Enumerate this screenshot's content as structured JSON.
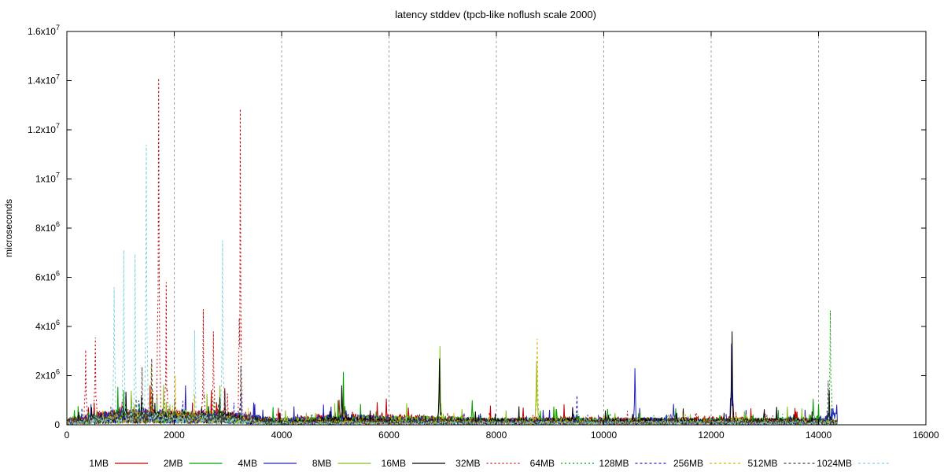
{
  "chart_data": {
    "type": "line",
    "title": "latency stddev (tpcb-like noflush scale 2000)",
    "xlabel": "",
    "ylabel": "microseconds",
    "xlim": [
      0,
      16000
    ],
    "ylim": [
      0,
      16000000
    ],
    "x_ticks": [
      0,
      2000,
      4000,
      6000,
      8000,
      10000,
      12000,
      14000,
      16000
    ],
    "y_ticks": [
      {
        "value": 0,
        "label": "0",
        "mant": "",
        "exp": ""
      },
      {
        "value": 2000000,
        "label": "",
        "mant": "2x10",
        "exp": "6"
      },
      {
        "value": 4000000,
        "label": "",
        "mant": "4x10",
        "exp": "6"
      },
      {
        "value": 6000000,
        "label": "",
        "mant": "6x10",
        "exp": "6"
      },
      {
        "value": 8000000,
        "label": "",
        "mant": "8x10",
        "exp": "6"
      },
      {
        "value": 10000000,
        "label": "",
        "mant": "1x10",
        "exp": "7"
      },
      {
        "value": 12000000,
        "label": "",
        "mant": "1.2x10",
        "exp": "7"
      },
      {
        "value": 14000000,
        "label": "",
        "mant": "1.4x10",
        "exp": "7"
      },
      {
        "value": 16000000,
        "label": "",
        "mant": "1.6x10",
        "exp": "7"
      }
    ],
    "grid": "vertical-dashed",
    "legend_position": "bottom",
    "series": [
      {
        "name": "1MB",
        "color": "#c00000",
        "dash": "",
        "points": [
          [
            0,
            150000
          ],
          [
            1000,
            400000
          ],
          [
            2000,
            300000
          ],
          [
            3000,
            350000
          ],
          [
            3300,
            250000
          ],
          [
            4000,
            150000
          ],
          [
            5100,
            300000
          ],
          [
            6000,
            250000
          ],
          [
            7000,
            200000
          ],
          [
            8000,
            150000
          ],
          [
            9000,
            200000
          ],
          [
            10000,
            180000
          ],
          [
            11000,
            150000
          ],
          [
            12000,
            200000
          ],
          [
            13000,
            150000
          ],
          [
            14000,
            180000
          ],
          [
            14350,
            100000
          ]
        ],
        "spikes": [
          [
            1200,
            1200000
          ],
          [
            5150,
            1100000
          ],
          [
            8500,
            700000
          ]
        ]
      },
      {
        "name": "2MB",
        "color": "#00a000",
        "dash": "",
        "points": [
          [
            0,
            150000
          ],
          [
            1000,
            350000
          ],
          [
            2000,
            300000
          ],
          [
            3000,
            300000
          ],
          [
            3300,
            250000
          ],
          [
            4000,
            150000
          ],
          [
            5200,
            250000
          ],
          [
            6000,
            200000
          ],
          [
            7000,
            200000
          ],
          [
            8000,
            150000
          ],
          [
            9000,
            150000
          ],
          [
            10000,
            150000
          ],
          [
            11000,
            150000
          ],
          [
            12000,
            150000
          ],
          [
            13000,
            150000
          ],
          [
            14000,
            200000
          ],
          [
            14350,
            100000
          ]
        ],
        "spikes": [
          [
            5150,
            2150000
          ],
          [
            7550,
            1000000
          ],
          [
            13900,
            1050000
          ]
        ]
      },
      {
        "name": "4MB",
        "color": "#2020c0",
        "dash": "",
        "points": [
          [
            0,
            120000
          ],
          [
            1000,
            400000
          ],
          [
            2000,
            350000
          ],
          [
            3000,
            300000
          ],
          [
            3300,
            250000
          ],
          [
            4000,
            150000
          ],
          [
            5100,
            250000
          ],
          [
            6000,
            200000
          ],
          [
            7000,
            200000
          ],
          [
            8000,
            150000
          ],
          [
            9000,
            150000
          ],
          [
            10000,
            150000
          ],
          [
            11000,
            180000
          ],
          [
            12000,
            150000
          ],
          [
            13000,
            150000
          ],
          [
            14000,
            150000
          ],
          [
            14350,
            500000
          ]
        ],
        "spikes": [
          [
            10580,
            2300000
          ],
          [
            11300,
            850000
          ],
          [
            12380,
            3300000
          ]
        ]
      },
      {
        "name": "8MB",
        "color": "#80c020",
        "dash": "",
        "points": [
          [
            0,
            100000
          ],
          [
            1000,
            300000
          ],
          [
            2000,
            350000
          ],
          [
            3000,
            300000
          ],
          [
            3300,
            200000
          ],
          [
            4000,
            150000
          ],
          [
            5100,
            200000
          ],
          [
            6000,
            200000
          ],
          [
            7000,
            200000
          ],
          [
            8000,
            150000
          ],
          [
            9000,
            150000
          ],
          [
            10000,
            150000
          ],
          [
            11000,
            150000
          ],
          [
            12000,
            150000
          ],
          [
            13000,
            150000
          ],
          [
            14000,
            150000
          ],
          [
            14350,
            100000
          ]
        ],
        "spikes": [
          [
            2850,
            1600000
          ],
          [
            6950,
            3200000
          ],
          [
            8750,
            2600000
          ]
        ]
      },
      {
        "name": "16MB",
        "color": "#000000",
        "dash": "",
        "points": [
          [
            0,
            100000
          ],
          [
            1000,
            300000
          ],
          [
            2000,
            300000
          ],
          [
            3000,
            300000
          ],
          [
            3300,
            200000
          ],
          [
            4000,
            100000
          ],
          [
            5100,
            200000
          ],
          [
            6000,
            150000
          ],
          [
            7000,
            150000
          ],
          [
            8000,
            150000
          ],
          [
            9000,
            150000
          ],
          [
            10000,
            150000
          ],
          [
            11000,
            150000
          ],
          [
            12000,
            150000
          ],
          [
            13000,
            150000
          ],
          [
            14000,
            150000
          ],
          [
            14350,
            100000
          ]
        ],
        "spikes": [
          [
            5120,
            1600000
          ],
          [
            6940,
            2700000
          ],
          [
            12390,
            3800000
          ],
          [
            14200,
            1400000
          ]
        ]
      },
      {
        "name": "32MB",
        "color": "#c00000",
        "dash": "2,3",
        "points": [
          [
            0,
            150000
          ],
          [
            1000,
            350000
          ],
          [
            2000,
            350000
          ],
          [
            3000,
            300000
          ],
          [
            3300,
            200000
          ],
          [
            4000,
            100000
          ],
          [
            6000,
            150000
          ],
          [
            8000,
            120000
          ],
          [
            10000,
            120000
          ],
          [
            12000,
            120000
          ],
          [
            14000,
            120000
          ],
          [
            14350,
            100000
          ]
        ],
        "spikes": [
          [
            350,
            3050000
          ],
          [
            530,
            3550000
          ],
          [
            1710,
            14100000
          ],
          [
            1850,
            5800000
          ],
          [
            2540,
            4700000
          ],
          [
            2730,
            3800000
          ],
          [
            3230,
            12850000
          ]
        ]
      },
      {
        "name": "64MB",
        "color": "#00a000",
        "dash": "2,3",
        "points": [
          [
            0,
            100000
          ],
          [
            1000,
            300000
          ],
          [
            2000,
            300000
          ],
          [
            3000,
            250000
          ],
          [
            3300,
            150000
          ],
          [
            4000,
            100000
          ],
          [
            6000,
            120000
          ],
          [
            8000,
            100000
          ],
          [
            10000,
            100000
          ],
          [
            12000,
            100000
          ],
          [
            14000,
            100000
          ],
          [
            14350,
            100000
          ]
        ],
        "spikes": [
          [
            14220,
            4650000
          ]
        ]
      },
      {
        "name": "128MB",
        "color": "#2020c0",
        "dash": "3,3",
        "points": [
          [
            0,
            100000
          ],
          [
            1000,
            300000
          ],
          [
            2000,
            250000
          ],
          [
            3000,
            250000
          ],
          [
            3300,
            150000
          ],
          [
            4000,
            80000
          ],
          [
            6000,
            100000
          ],
          [
            8000,
            100000
          ],
          [
            10000,
            100000
          ],
          [
            12000,
            100000
          ],
          [
            14000,
            100000
          ],
          [
            14350,
            100000
          ]
        ],
        "spikes": [
          [
            9500,
            1200000
          ],
          [
            3240,
            1300000
          ]
        ]
      },
      {
        "name": "256MB",
        "color": "#e0b000",
        "dash": "3,3",
        "points": [
          [
            0,
            100000
          ],
          [
            1000,
            300000
          ],
          [
            2000,
            250000
          ],
          [
            3000,
            250000
          ],
          [
            3300,
            150000
          ],
          [
            4000,
            80000
          ],
          [
            6000,
            100000
          ],
          [
            8000,
            100000
          ],
          [
            10000,
            100000
          ],
          [
            12000,
            100000
          ],
          [
            14000,
            100000
          ],
          [
            14350,
            100000
          ]
        ],
        "spikes": [
          [
            8760,
            3500000
          ],
          [
            1570,
            2500000
          ],
          [
            2020,
            2000000
          ]
        ]
      },
      {
        "name": "512MB",
        "color": "#404040",
        "dash": "3,3",
        "points": [
          [
            0,
            100000
          ],
          [
            1000,
            300000
          ],
          [
            2000,
            250000
          ],
          [
            3000,
            250000
          ],
          [
            3300,
            150000
          ],
          [
            4000,
            80000
          ],
          [
            6000,
            100000
          ],
          [
            8000,
            100000
          ],
          [
            10000,
            100000
          ],
          [
            12000,
            100000
          ],
          [
            14000,
            100000
          ],
          [
            14350,
            100000
          ]
        ],
        "spikes": [
          [
            1400,
            2350000
          ],
          [
            1580,
            2700000
          ],
          [
            3240,
            2400000
          ],
          [
            14180,
            1800000
          ]
        ]
      },
      {
        "name": "1024MB",
        "color": "#80d0e0",
        "dash": "3,3",
        "points": [
          [
            0,
            80000
          ],
          [
            1000,
            250000
          ],
          [
            2000,
            250000
          ],
          [
            3000,
            200000
          ],
          [
            3300,
            120000
          ],
          [
            4000,
            60000
          ],
          [
            6000,
            80000
          ],
          [
            8000,
            80000
          ],
          [
            10000,
            80000
          ],
          [
            12000,
            80000
          ],
          [
            14000,
            80000
          ],
          [
            14350,
            80000
          ]
        ],
        "spikes": [
          [
            880,
            5600000
          ],
          [
            1060,
            7100000
          ],
          [
            1270,
            6950000
          ],
          [
            1480,
            11400000
          ],
          [
            2380,
            3850000
          ],
          [
            2900,
            7500000
          ]
        ]
      }
    ]
  }
}
